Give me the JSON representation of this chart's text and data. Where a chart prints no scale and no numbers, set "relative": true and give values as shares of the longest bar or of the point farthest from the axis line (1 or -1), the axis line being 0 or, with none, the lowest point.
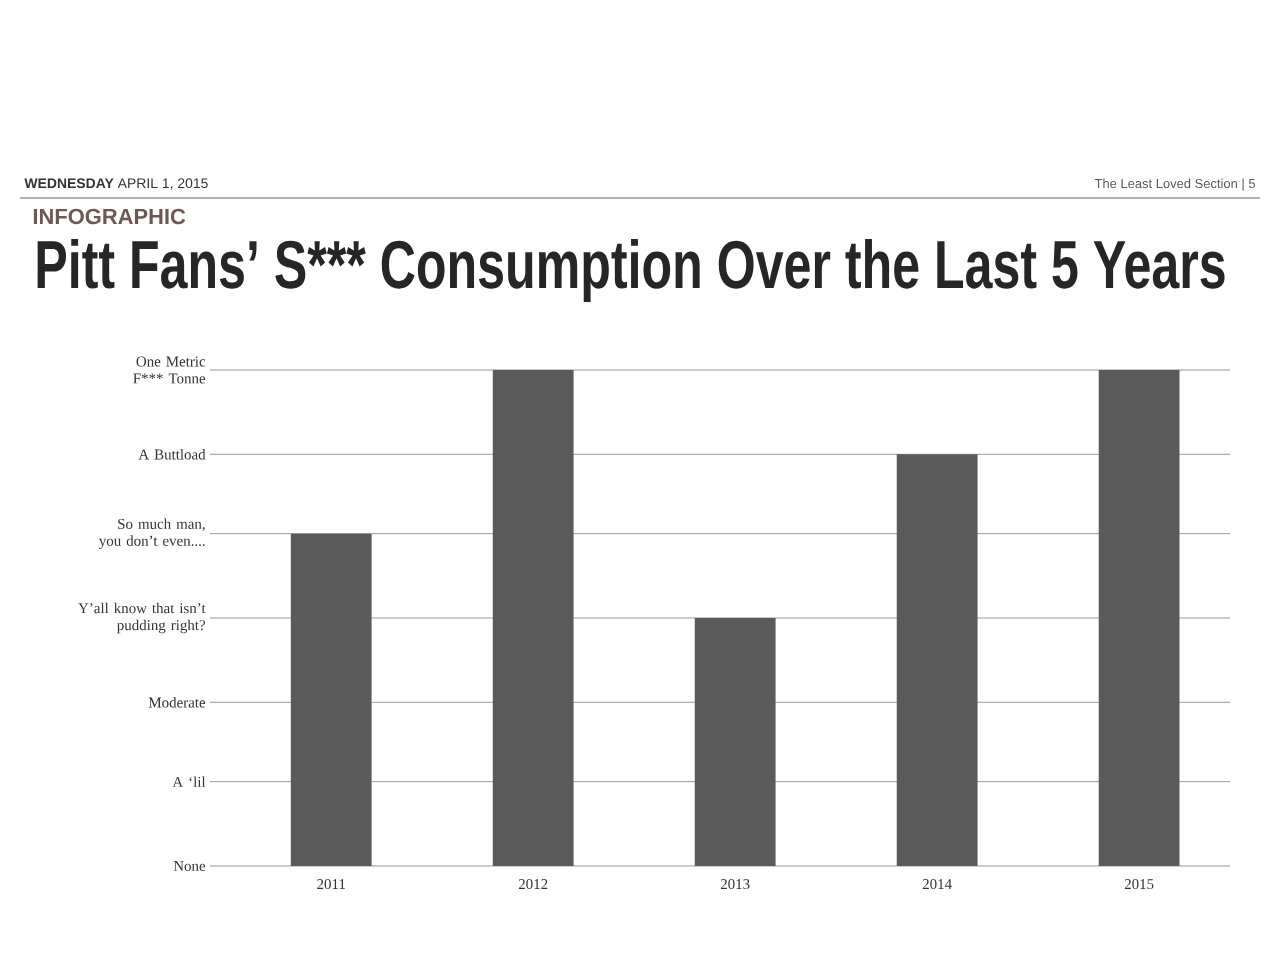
{
  "chart_data": {
    "type": "bar",
    "title": "Pitt Fans’ S*** Consumption Over the Last 5 Years",
    "subtitle": "INFOGRAPHIC",
    "annotations": [
      "**WEDNESDAY** APRIL 1, 2015",
      "The Least Loved Section | 5"
    ],
    "categories": [
      "2011",
      "2012",
      "2013",
      "2014",
      "2015"
    ],
    "values": [
      0.67,
      1,
      0.5,
      0.83,
      1
    ],
    "color": "#5a5a5a",
    "relative": true,
    "ref_lines": [
      {
        "axis": "y",
        "value": 0,
        "label": "None",
        "color": "#9a9a9a"
      },
      {
        "axis": "y",
        "value": 0.17,
        "label": "A ‘lil",
        "color": "#9a9a9a"
      },
      {
        "axis": "y",
        "value": 0.33,
        "label": "Moderate",
        "color": "#9a9a9a"
      },
      {
        "axis": "y",
        "value": 0.5,
        "label": "Y’all know that isn’t\npudding right?",
        "color": "#9a9a9a"
      },
      {
        "axis": "y",
        "value": 0.67,
        "label": "So much man,\nyou don’t even....",
        "color": "#9a9a9a"
      },
      {
        "axis": "y",
        "value": 0.83,
        "label": "A Buttload",
        "color": "#9a9a9a"
      },
      {
        "axis": "y",
        "value": 1,
        "label": "One Metric\nF*** Tonne",
        "color": "#9a9a9a"
      }
    ]
  }
}
